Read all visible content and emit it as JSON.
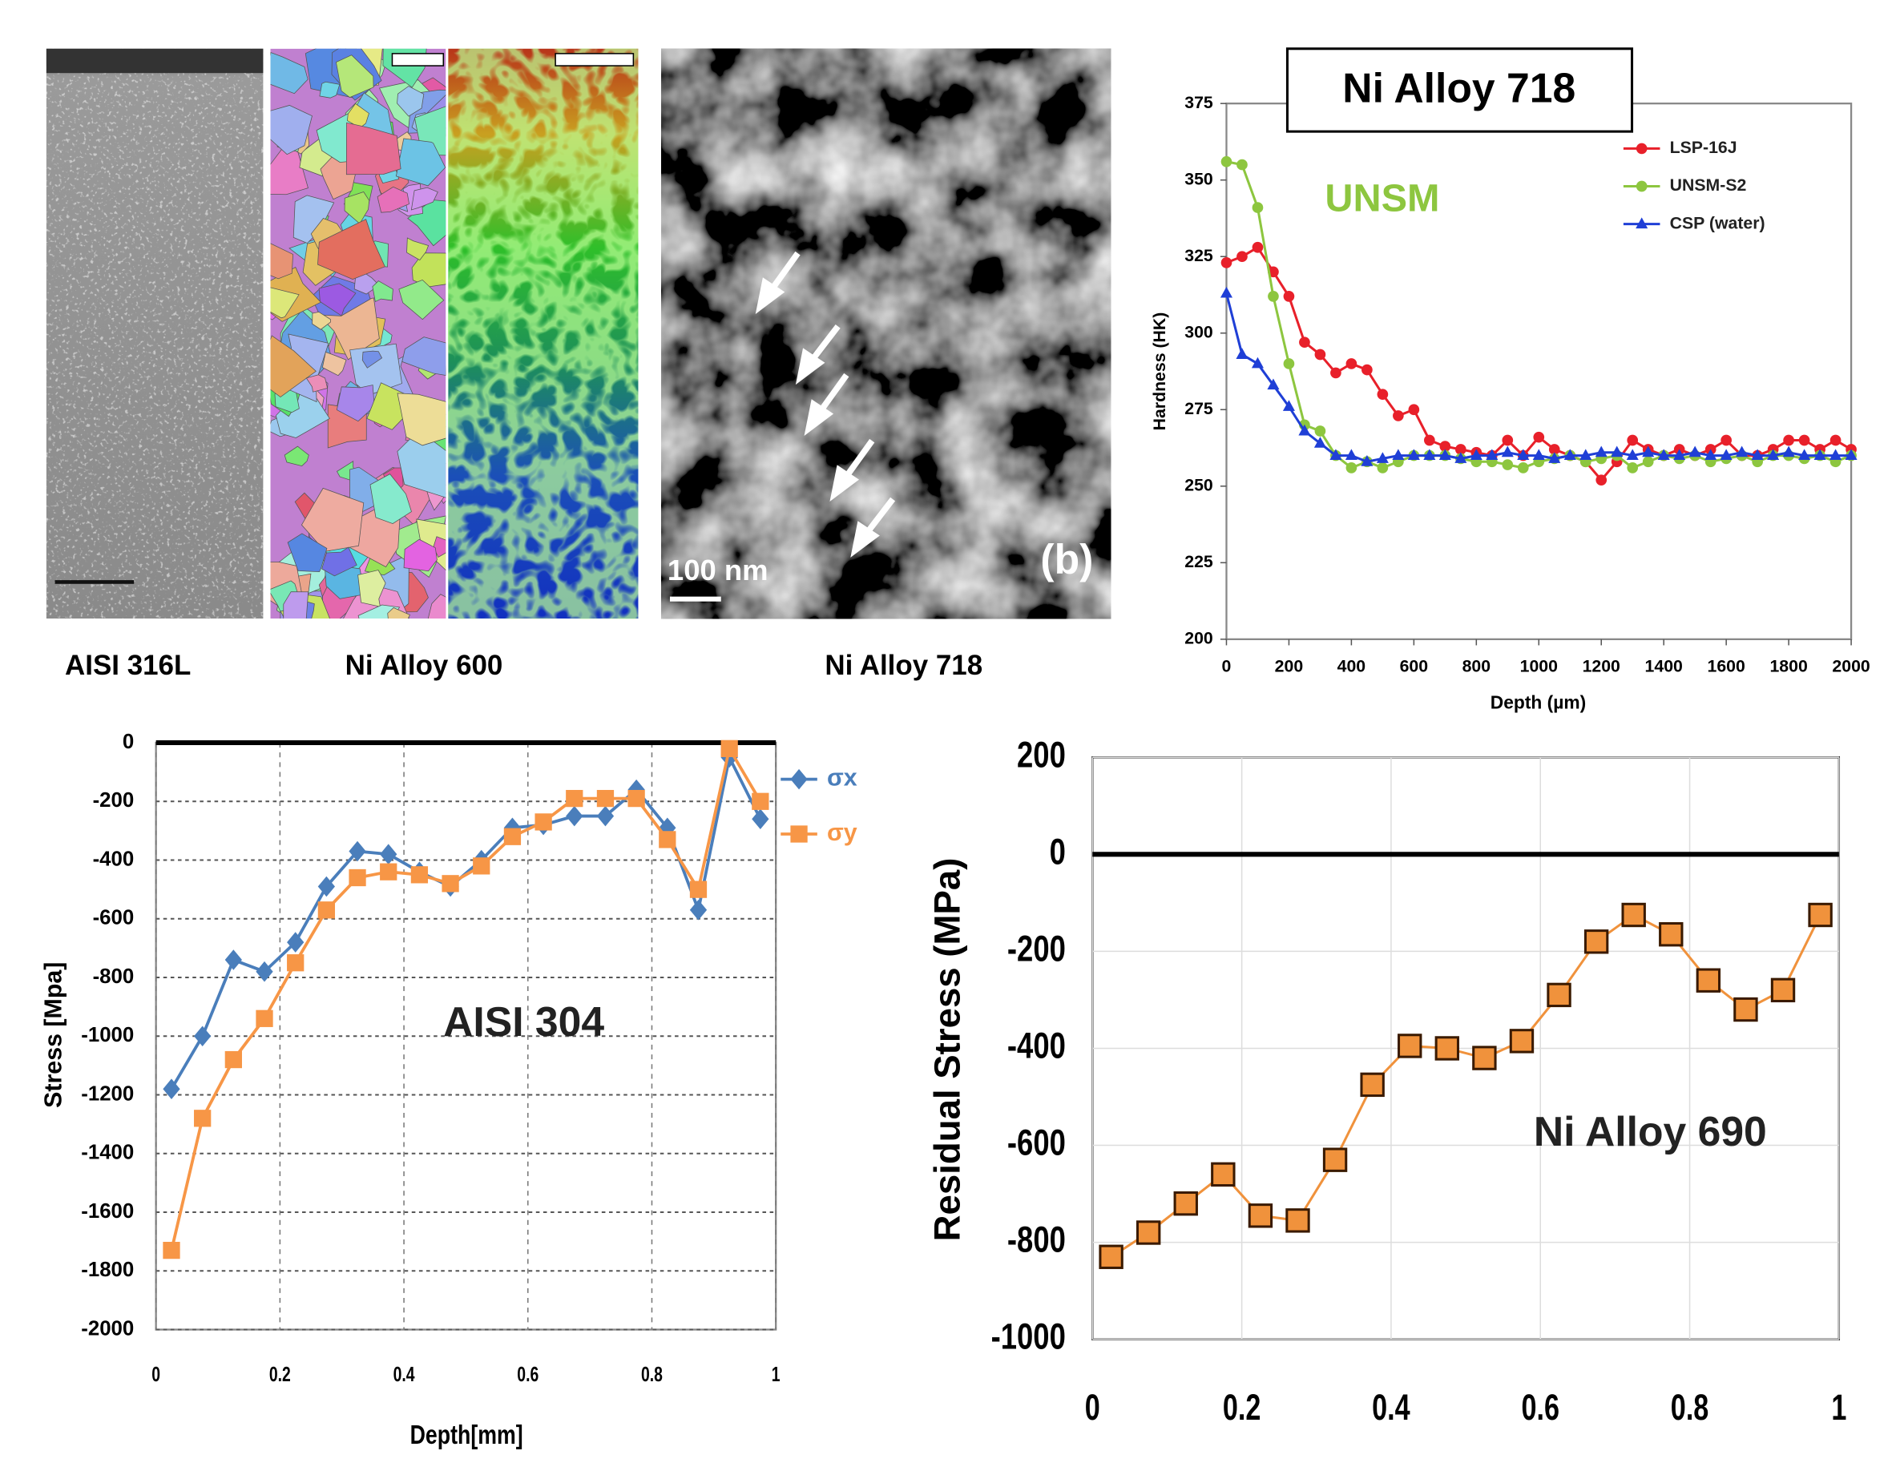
{
  "panels": {
    "captions": [
      "AISI 316L",
      "Ni Alloy 600",
      "Ni Alloy 718"
    ],
    "scale_bar": "100 nm",
    "panel_label": "(b)"
  },
  "chart_data": [
    {
      "type": "line",
      "title": "Ni Alloy 718",
      "annotation": "UNSM",
      "annotation_color": "#8dc63f",
      "x_label": "Depth (µm)",
      "y_label": "Hardness (HK)",
      "x": [
        0,
        50,
        100,
        150,
        200,
        250,
        300,
        350,
        400,
        450,
        500,
        550,
        600,
        650,
        700,
        750,
        800,
        850,
        900,
        950,
        1000,
        1050,
        1100,
        1150,
        1200,
        1250,
        1300,
        1350,
        1400,
        1450,
        1500,
        1550,
        1600,
        1650,
        1700,
        1750,
        1800,
        1850,
        1900,
        1950,
        2000
      ],
      "series": [
        {
          "name": "LSP-16J",
          "color": "#e8202a",
          "marker": "circle",
          "values": [
            323,
            325,
            328,
            320,
            312,
            297,
            293,
            287,
            290,
            288,
            280,
            273,
            275,
            265,
            263,
            262,
            261,
            260,
            265,
            260,
            266,
            262,
            260,
            258,
            252,
            258,
            265,
            262,
            260,
            262,
            260,
            262,
            265,
            260,
            260,
            262,
            265,
            265,
            262,
            265,
            262
          ]
        },
        {
          "name": "UNSM-S2",
          "color": "#8dc63f",
          "marker": "circle",
          "values": [
            356,
            355,
            341,
            312,
            290,
            270,
            268,
            260,
            256,
            258,
            256,
            258,
            260,
            260,
            260,
            259,
            258,
            258,
            257,
            256,
            258,
            259,
            260,
            258,
            259,
            260,
            256,
            258,
            260,
            259,
            260,
            258,
            259,
            260,
            258,
            260,
            260,
            259,
            260,
            258,
            260
          ]
        },
        {
          "name": "CSP (water)",
          "color": "#1f3fd6",
          "marker": "triangle",
          "values": [
            313,
            293,
            290,
            283,
            276,
            268,
            264,
            260,
            260,
            258,
            259,
            260,
            260,
            260,
            260,
            259,
            260,
            260,
            261,
            260,
            260,
            259,
            260,
            260,
            261,
            261,
            260,
            261,
            260,
            260,
            261,
            260,
            260,
            261,
            260,
            260,
            261,
            260,
            260,
            260,
            260
          ]
        }
      ],
      "xlim": [
        0,
        2000
      ],
      "xticks": [
        0,
        200,
        400,
        600,
        800,
        1000,
        1200,
        1400,
        1600,
        1800,
        2000
      ],
      "ylim": [
        200,
        375
      ],
      "yticks": [
        200,
        225,
        250,
        275,
        300,
        325,
        350,
        375
      ],
      "grid": false,
      "zero_line": false,
      "legend": "upper right"
    },
    {
      "type": "line",
      "annotation": "AISI 304",
      "x_label": "Depth[mm]",
      "y_label": "Stress [Mpa]",
      "x": [
        0.025,
        0.075,
        0.125,
        0.175,
        0.225,
        0.275,
        0.325,
        0.375,
        0.425,
        0.475,
        0.525,
        0.575,
        0.625,
        0.675,
        0.725,
        0.775,
        0.825,
        0.875,
        0.925,
        0.975
      ],
      "series": [
        {
          "name": "σx",
          "color": "#4a7ebb",
          "marker": "diamond",
          "values": [
            -1180,
            -1000,
            -740,
            -780,
            -680,
            -490,
            -370,
            -380,
            -440,
            -490,
            -400,
            -290,
            -280,
            -250,
            -250,
            -160,
            -290,
            -570,
            -50,
            -260
          ]
        },
        {
          "name": "σy",
          "color": "#f79646",
          "marker": "square",
          "values": [
            -1730,
            -1280,
            -1080,
            -940,
            -750,
            -570,
            -460,
            -440,
            -450,
            -480,
            -420,
            -320,
            -270,
            -190,
            -190,
            -190,
            -330,
            -500,
            -20,
            -200
          ]
        }
      ],
      "xlim": [
        0,
        1
      ],
      "xticks": [
        0,
        0.2,
        0.4,
        0.6,
        0.8,
        1
      ],
      "ylim": [
        -2000,
        0
      ],
      "yticks": [
        -2000,
        -1800,
        -1600,
        -1400,
        -1200,
        -1000,
        -800,
        -600,
        -400,
        -200,
        0
      ],
      "grid": true,
      "grid_style": "dashed",
      "zero_line": true,
      "legend": "right"
    },
    {
      "type": "line",
      "annotation": "Ni Alloy 690",
      "y_label": "Residual Stress (MPa)",
      "x": [
        0.025,
        0.075,
        0.125,
        0.175,
        0.225,
        0.275,
        0.325,
        0.375,
        0.425,
        0.475,
        0.525,
        0.575,
        0.625,
        0.675,
        0.725,
        0.775,
        0.825,
        0.875,
        0.925,
        0.975
      ],
      "series": [
        {
          "color": "#f0923c",
          "marker": "square",
          "values": [
            -830,
            -780,
            -720,
            -660,
            -745,
            -755,
            -630,
            -475,
            -395,
            -400,
            -420,
            -385,
            -290,
            -180,
            -125,
            -165,
            -260,
            -320,
            -280,
            -125
          ]
        }
      ],
      "xlim": [
        0,
        1
      ],
      "xticks": [
        0,
        0.2,
        0.4,
        0.6,
        0.8,
        1
      ],
      "ylim": [
        -1000,
        200
      ],
      "yticks": [
        -1000,
        -800,
        -600,
        -400,
        -200,
        0,
        200
      ],
      "grid": true,
      "grid_style": "solid",
      "zero_line": true
    }
  ]
}
